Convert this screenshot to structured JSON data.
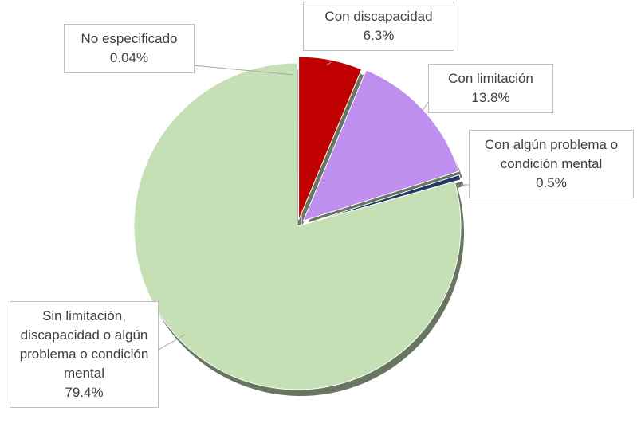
{
  "chart_data": {
    "type": "pie",
    "categories": [
      "Con discapacidad",
      "Con limitación",
      "Con algún problema o condición mental",
      "Sin limitación, discapacidad o algún problema o condición mental",
      "No especificado"
    ],
    "values": [
      6.3,
      13.8,
      0.5,
      79.4,
      0.04
    ],
    "value_labels": [
      "6.3%",
      "13.8%",
      "0.5%",
      "79.4%",
      "0.04%"
    ],
    "colors": [
      "#c00000",
      "#bf8ff0",
      "#1f3864",
      "#c5e0b4",
      "#4472c4"
    ]
  }
}
